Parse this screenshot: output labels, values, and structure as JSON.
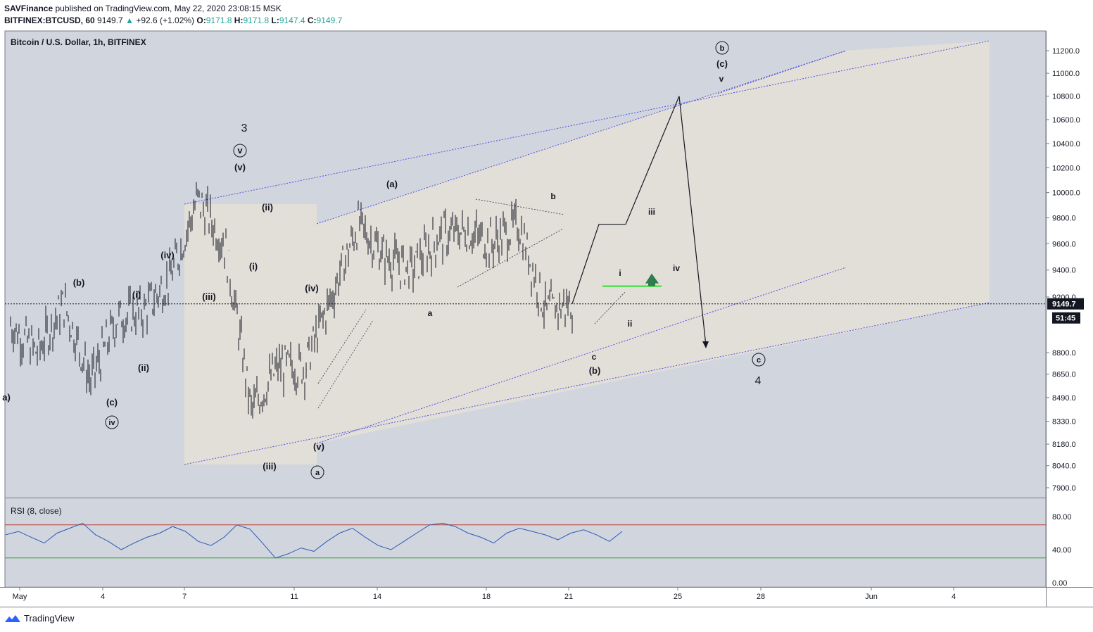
{
  "header": {
    "publisher": "SAVFinance",
    "published_text": "published on TradingView.com, May 22, 2020 23:08:15 MSK",
    "symbol": "BITFINEX:BTCUSD, 60",
    "last": "9149.7",
    "change": "+92.6 (+1.02%)",
    "ohlc": {
      "o_label": "O:",
      "o": "9171.8",
      "h_label": "H:",
      "h": "9171.8",
      "l_label": "L:",
      "l": "9147.4",
      "c_label": "C:",
      "c": "9149.7"
    }
  },
  "chart_data": [
    {
      "type": "line",
      "title": "Bitcoin / U.S. Dollar, 1h, BITFINEX",
      "xlabel": "",
      "ylabel": "",
      "x_ticks": [
        "May",
        "4",
        "7",
        "11",
        "14",
        "18",
        "21",
        "25",
        "28",
        "Jun",
        "4"
      ],
      "y_ticks": [
        "11200.0",
        "11000.0",
        "10800.0",
        "10600.0",
        "10400.0",
        "10200.0",
        "10000.0",
        "9800.0",
        "9600.0",
        "9400.0",
        "9200.0",
        "8800.0",
        "8650.0",
        "8490.0",
        "8330.0",
        "8180.0",
        "8040.0",
        "7900.0"
      ],
      "ylim": [
        7800,
        11350
      ],
      "y_scale": "log",
      "last_price": "9149.7",
      "countdown": "51:45",
      "colors": {
        "price_bars": "#131722",
        "channel": "#4f4fe0",
        "zone": "#ece6df",
        "level": "#33dd33",
        "arrow": "#2e7d4f"
      },
      "price_path": [
        {
          "x": "May 1",
          "y": 9000
        },
        {
          "x": "May 2",
          "y": 8800
        },
        {
          "x": "May 3",
          "y": 9150
        },
        {
          "x": "May 4",
          "y": 8600
        },
        {
          "x": "May 5",
          "y": 9050
        },
        {
          "x": "May 6",
          "y": 9100
        },
        {
          "x": "May 7",
          "y": 9350
        },
        {
          "x": "May 8",
          "y": 9950
        },
        {
          "x": "May 9",
          "y": 9600
        },
        {
          "x": "May 10",
          "y": 8400
        },
        {
          "x": "May 11",
          "y": 8700
        },
        {
          "x": "May 12",
          "y": 8700
        },
        {
          "x": "May 13",
          "y": 9200
        },
        {
          "x": "May 14",
          "y": 9750
        },
        {
          "x": "May 15",
          "y": 9500
        },
        {
          "x": "May 16",
          "y": 9400
        },
        {
          "x": "May 17",
          "y": 9650
        },
        {
          "x": "May 18",
          "y": 9700
        },
        {
          "x": "May 19",
          "y": 9600
        },
        {
          "x": "May 20",
          "y": 9750
        },
        {
          "x": "May 21",
          "y": 9100
        },
        {
          "x": "May 22",
          "y": 9150
        }
      ],
      "projection": [
        {
          "x": "May 22",
          "y": 9150
        },
        {
          "x": "May 23",
          "y": 9750
        },
        {
          "x": "May 24",
          "y": 9750
        },
        {
          "x": "May 26",
          "y": 10800
        },
        {
          "x": "May 27",
          "y": 8850
        }
      ],
      "horizontal_level": 9280,
      "wave_labels": [
        "3",
        "v",
        "(v)",
        "(ii)",
        "(i)",
        "(iii)",
        "(iv)",
        "(iii)",
        "(b)",
        "(i)",
        "(ii)",
        "(c)",
        "iv",
        "a)",
        "(a)",
        "(iv)",
        "(v)",
        "a",
        "a",
        "b",
        "c",
        "(b)",
        "i",
        "ii",
        "iii",
        "iv",
        "b",
        "(c)",
        "v",
        "c",
        "4"
      ]
    },
    {
      "type": "line",
      "title": "RSI (8, close)",
      "ylim": [
        0,
        100
      ],
      "y_ticks": [
        "80.00",
        "40.00",
        "0.00"
      ],
      "levels": [
        {
          "value": 70,
          "color": "#c0392b"
        },
        {
          "value": 30,
          "color": "#2e9e2e"
        }
      ],
      "series": [
        {
          "color": "#2a5ab5",
          "values": [
            58,
            62,
            55,
            48,
            60,
            66,
            72,
            58,
            50,
            40,
            48,
            55,
            60,
            68,
            62,
            50,
            45,
            55,
            70,
            65,
            48,
            30,
            35,
            42,
            38,
            50,
            60,
            66,
            55,
            45,
            40,
            50,
            60,
            70,
            72,
            68,
            60,
            55,
            48,
            60,
            66,
            62,
            58,
            52,
            60,
            64,
            58,
            50,
            62
          ]
        }
      ]
    }
  ],
  "footer": {
    "brand": "TradingView"
  }
}
